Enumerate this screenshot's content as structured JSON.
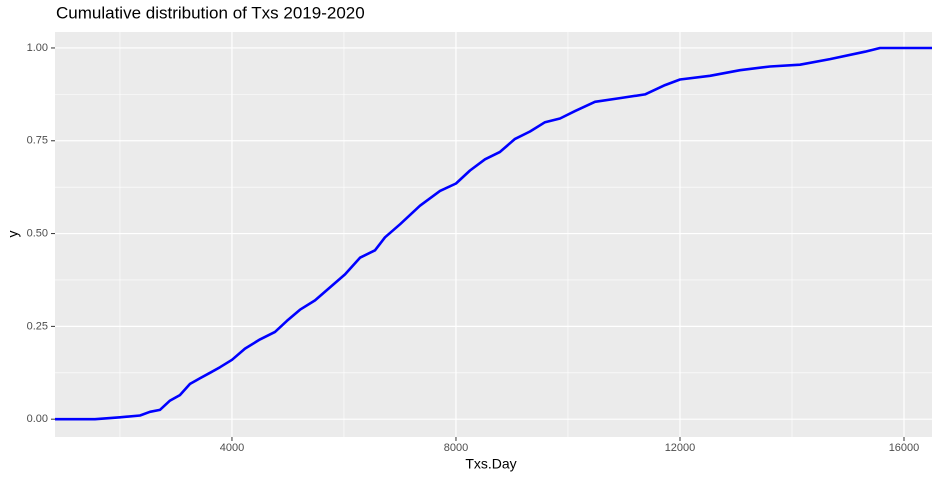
{
  "chart_data": {
    "type": "line",
    "title": "Cumulative distribution of Txs 2019-2020",
    "x_label": "Txs.Day",
    "y_label": "y",
    "x": [
      840,
      1554,
      2000,
      2357,
      2536,
      2714,
      2893,
      3071,
      3250,
      3429,
      3607,
      3786,
      4000,
      4232,
      4500,
      4768,
      4982,
      5214,
      5482,
      5750,
      6018,
      6286,
      6554,
      6732,
      7000,
      7357,
      7714,
      8000,
      8250,
      8518,
      8786,
      9054,
      9321,
      9589,
      9857,
      10125,
      10482,
      10929,
      11375,
      11732,
      12000,
      12536,
      13071,
      13607,
      14143,
      14679,
      15304,
      15571,
      16500
    ],
    "series": [
      {
        "color": "#0000ff",
        "values": [
          0,
          0,
          0.005,
          0.01,
          0.02,
          0.025,
          0.05,
          0.065,
          0.095,
          0.11,
          0.125,
          0.14,
          0.16,
          0.19,
          0.215,
          0.235,
          0.265,
          0.295,
          0.32,
          0.355,
          0.39,
          0.435,
          0.455,
          0.49,
          0.525,
          0.575,
          0.615,
          0.635,
          0.67,
          0.7,
          0.72,
          0.755,
          0.775,
          0.8,
          0.81,
          0.83,
          0.855,
          0.865,
          0.875,
          0.9,
          0.915,
          0.925,
          0.94,
          0.95,
          0.955,
          0.97,
          0.99,
          1.0,
          1.0
        ]
      }
    ],
    "xlim": [
      840,
      16500
    ],
    "ylim": [
      -0.048,
      1.043
    ],
    "xticks": [
      4000,
      8000,
      12000,
      16000
    ],
    "yticks": [
      {
        "value": 0,
        "label": "0.00"
      },
      {
        "value": 0.25,
        "label": "0.25"
      },
      {
        "value": 0.5,
        "label": "0.50"
      },
      {
        "value": 0.75,
        "label": "0.75"
      },
      {
        "value": 1,
        "label": "1.00"
      }
    ],
    "x_minor_ticks": [
      2000,
      6000,
      10000,
      14000
    ],
    "y_minor_ticks": [
      0.125,
      0.375,
      0.625,
      0.875
    ],
    "grid": true
  }
}
